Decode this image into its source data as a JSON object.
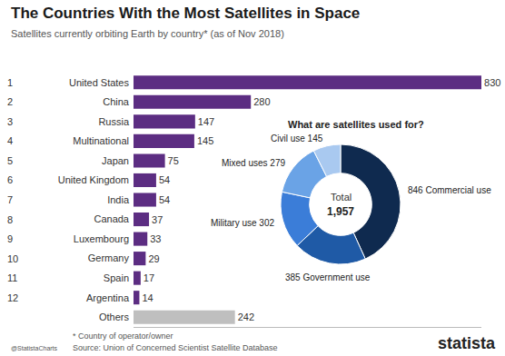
{
  "title": "The Countries With the Most Satellites in Space",
  "subtitle": "Satellites currently orbiting Earth by country* (as of Nov 2018)",
  "footnote": "* Country of operator/owner",
  "source": "Source: Union of Concerned Scientist Satellite Database",
  "credit": "@StatistaCharts",
  "brand": "statista",
  "chart_data": [
    {
      "type": "bar",
      "orientation": "horizontal",
      "categories": [
        "United States",
        "China",
        "Russia",
        "Multinational",
        "Japan",
        "United Kingdom",
        "India",
        "Canada",
        "Luxembourg",
        "Germany",
        "Spain",
        "Argentina",
        "Others"
      ],
      "ranks": [
        1,
        2,
        3,
        4,
        5,
        6,
        7,
        8,
        9,
        10,
        11,
        12,
        null
      ],
      "values": [
        830,
        280,
        147,
        145,
        75,
        54,
        54,
        37,
        33,
        29,
        17,
        14,
        242
      ],
      "colors": [
        "#5c2d82",
        "#5c2d82",
        "#5c2d82",
        "#5c2d82",
        "#5c2d82",
        "#5c2d82",
        "#5c2d82",
        "#5c2d82",
        "#5c2d82",
        "#5c2d82",
        "#5c2d82",
        "#5c2d82",
        "#bfbfbf"
      ],
      "xlim": [
        0,
        830
      ],
      "tick_labels": "y",
      "grid": false,
      "data_labels": true
    },
    {
      "type": "pie",
      "title": "What are satellites used for?",
      "categories": [
        "Commercial use",
        "Government use",
        "Military use",
        "Mixed uses",
        "Civil use"
      ],
      "values": [
        846,
        385,
        302,
        279,
        145
      ],
      "value_labels": [
        "846 Commercial use",
        "385 Government use",
        "Military use 302",
        "Mixed uses 279",
        "Civil use 145"
      ],
      "colors": [
        "#0f2a4f",
        "#1f5aa6",
        "#3b7dd8",
        "#6aa3e6",
        "#a9c9f0"
      ],
      "center_text": "Total",
      "total": {
        "value": 1957,
        "label": "1,957"
      },
      "data_labels": true
    }
  ]
}
